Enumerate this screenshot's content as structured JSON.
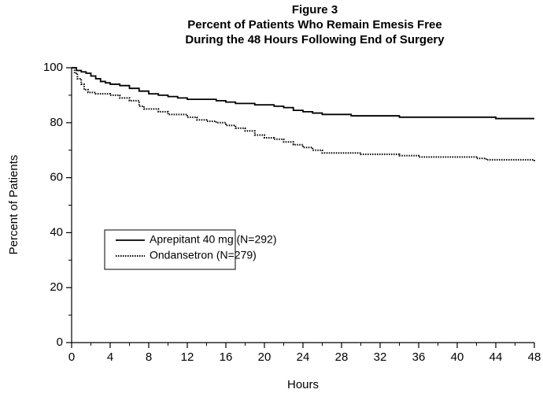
{
  "chart_data": {
    "type": "line",
    "step": true,
    "title": [
      "Figure 3",
      "Percent of Patients Who Remain Emesis Free",
      "During the 48 Hours Following End of Surgery"
    ],
    "xlabel": "Hours",
    "ylabel": "Percent of Patients",
    "xlim": [
      0,
      48
    ],
    "ylim": [
      0,
      100
    ],
    "xticks": [
      0,
      4,
      8,
      12,
      16,
      20,
      24,
      28,
      32,
      36,
      40,
      44,
      48
    ],
    "yticks": [
      0,
      20,
      40,
      60,
      80,
      100
    ],
    "xminor_ticks": [
      2,
      6,
      10,
      14,
      18,
      22,
      26,
      30,
      34,
      38,
      42,
      46
    ],
    "yminor_ticks": [
      10,
      30,
      50,
      70,
      90
    ],
    "legend": "lower-left",
    "series": [
      {
        "name": "Aprepitant 40 mg (N=292)",
        "color": "#000000",
        "style": "solid",
        "x": [
          0,
          0.5,
          1,
          1.5,
          2,
          2.5,
          3,
          3.5,
          4,
          5,
          6,
          7,
          8,
          9,
          10,
          11,
          12,
          15,
          16,
          17,
          19,
          21,
          22,
          23,
          24,
          25,
          26,
          29,
          34,
          44,
          48
        ],
        "values": [
          100,
          99,
          98.5,
          98,
          97,
          96,
          95,
          94.5,
          94,
          93.5,
          92.5,
          91.5,
          90.5,
          90,
          89.5,
          89,
          88.5,
          88,
          87.5,
          87,
          86.5,
          86,
          85.5,
          84.5,
          84,
          83.5,
          83,
          82.5,
          82,
          81.5,
          81.5
        ]
      },
      {
        "name": "Ondansetron (N=279)",
        "color": "#000000",
        "style": "dotted",
        "x": [
          0,
          0.3,
          0.6,
          1,
          1.3,
          1.7,
          2.5,
          4,
          5,
          6,
          7,
          7.5,
          9,
          10,
          12,
          13,
          14,
          15,
          16,
          17,
          18,
          19,
          20,
          21,
          22,
          23,
          24,
          25,
          26,
          28,
          30,
          34,
          36,
          38,
          42,
          43,
          48
        ],
        "values": [
          100,
          98,
          96,
          94,
          92,
          91,
          90.5,
          90,
          89,
          88,
          86,
          85,
          84,
          83,
          82,
          81,
          80.5,
          80,
          79,
          78,
          77,
          75.5,
          74.5,
          74,
          73,
          72,
          71,
          70,
          69,
          69,
          68.5,
          68,
          67.5,
          67.5,
          67,
          66.5,
          66
        ]
      }
    ]
  }
}
